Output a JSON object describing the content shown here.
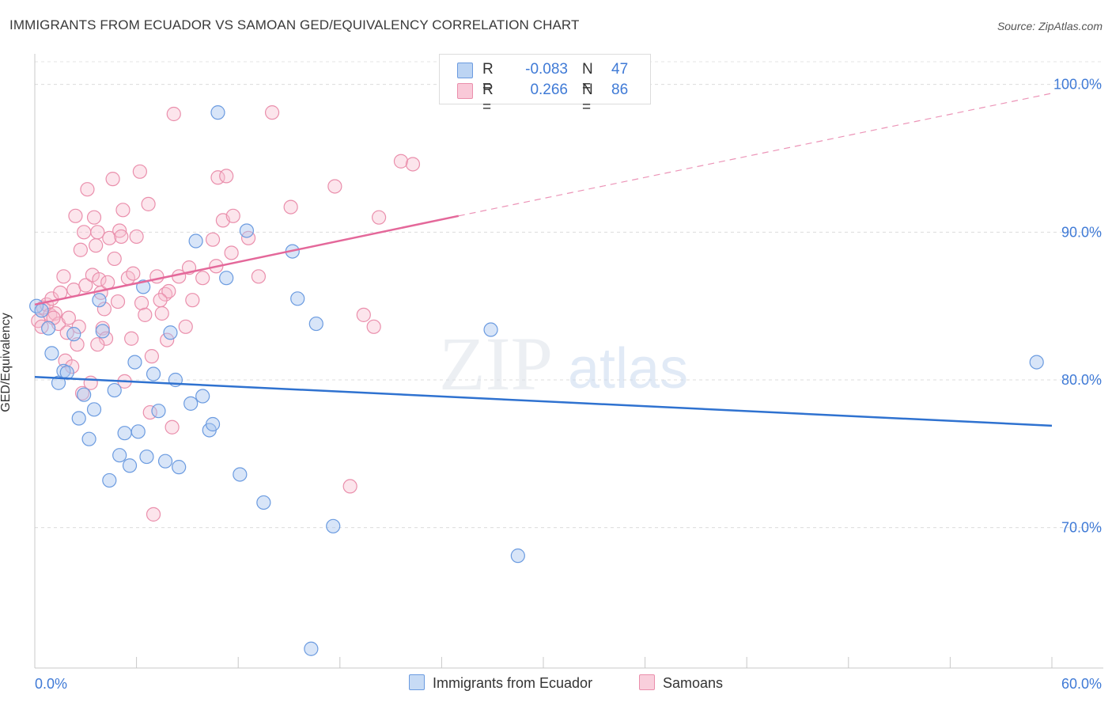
{
  "title": "IMMIGRANTS FROM ECUADOR VS SAMOAN GED/EQUIVALENCY CORRELATION CHART",
  "source": "Source: ZipAtlas.com",
  "watermark": {
    "zip": "ZIP",
    "atlas": "atlas"
  },
  "legend": {
    "rows": [
      {
        "r_label": "R =",
        "r_value": "-0.083",
        "n_label": "N =",
        "n_value": "47",
        "color": "#a8c6f0",
        "stroke": "#6b9be0"
      },
      {
        "r_label": "R =",
        "r_value": "0.266",
        "n_label": "N =",
        "n_value": "86",
        "color": "#f7bfd0",
        "stroke": "#ea8fac"
      }
    ]
  },
  "bottom_legend": {
    "items": [
      {
        "label": "Immigrants from Ecuador",
        "color": "#c7dbf5",
        "stroke": "#6b9be0"
      },
      {
        "label": "Samoans",
        "color": "#f9cfdc",
        "stroke": "#ea8fac"
      }
    ]
  },
  "chart_data": {
    "type": "scatter",
    "title": "IMMIGRANTS FROM ECUADOR VS SAMOAN GED/EQUIVALENCY CORRELATION CHART",
    "xlabel": "",
    "ylabel": "GED/Equivalency",
    "xlim": [
      0,
      60
    ],
    "ylim": [
      60.5,
      102.5
    ],
    "x_tick_labels": [
      "0.0%",
      "60.0%"
    ],
    "y_ticks": [
      70,
      80,
      90,
      100
    ],
    "y_tick_labels": [
      "70.0%",
      "80.0%",
      "90.0%",
      "100.0%"
    ],
    "grid": true,
    "legend_position": "top-center",
    "series": [
      {
        "name": "Immigrants from Ecuador",
        "color": "#6b9be0",
        "fill": "rgba(168,198,240,0.45)",
        "trend": {
          "x": [
            0,
            60
          ],
          "y": [
            80.2,
            76.9
          ],
          "color": "#2f72d0",
          "dashed_from": null
        },
        "points": [
          [
            0.1,
            85.0
          ],
          [
            0.4,
            84.7
          ],
          [
            0.8,
            83.5
          ],
          [
            1.0,
            81.8
          ],
          [
            1.4,
            79.8
          ],
          [
            1.7,
            80.6
          ],
          [
            1.9,
            80.5
          ],
          [
            2.3,
            83.1
          ],
          [
            2.6,
            77.4
          ],
          [
            2.9,
            79.0
          ],
          [
            3.2,
            76.0
          ],
          [
            3.5,
            78.0
          ],
          [
            3.8,
            85.4
          ],
          [
            4.0,
            83.3
          ],
          [
            4.4,
            73.2
          ],
          [
            4.7,
            79.3
          ],
          [
            5.0,
            74.9
          ],
          [
            5.3,
            76.4
          ],
          [
            5.6,
            74.2
          ],
          [
            5.9,
            81.2
          ],
          [
            6.1,
            76.5
          ],
          [
            6.4,
            86.3
          ],
          [
            6.6,
            74.8
          ],
          [
            7.0,
            80.4
          ],
          [
            7.3,
            77.9
          ],
          [
            7.7,
            74.5
          ],
          [
            8.0,
            83.2
          ],
          [
            8.3,
            80.0
          ],
          [
            8.5,
            74.1
          ],
          [
            9.2,
            78.4
          ],
          [
            9.5,
            89.4
          ],
          [
            9.9,
            78.9
          ],
          [
            10.3,
            76.6
          ],
          [
            10.5,
            77.0
          ],
          [
            10.8,
            98.1
          ],
          [
            11.3,
            86.9
          ],
          [
            12.1,
            73.6
          ],
          [
            12.5,
            90.1
          ],
          [
            13.5,
            71.7
          ],
          [
            15.2,
            88.7
          ],
          [
            15.5,
            85.5
          ],
          [
            16.3,
            61.8
          ],
          [
            16.6,
            83.8
          ],
          [
            17.6,
            70.1
          ],
          [
            26.9,
            83.4
          ],
          [
            28.5,
            68.1
          ],
          [
            59.1,
            81.2
          ]
        ]
      },
      {
        "name": "Samoans",
        "color": "#ea8fac",
        "fill": "rgba(247,191,208,0.40)",
        "trend": {
          "x": [
            0,
            25.0,
            60
          ],
          "y": [
            85.1,
            91.1,
            99.4
          ],
          "color": "#e4689a",
          "dashed_from": 25.0
        },
        "points": [
          [
            0.2,
            84.0
          ],
          [
            0.4,
            83.6
          ],
          [
            0.5,
            84.9
          ],
          [
            0.7,
            85.1
          ],
          [
            0.9,
            84.4
          ],
          [
            1.0,
            85.5
          ],
          [
            1.2,
            84.5
          ],
          [
            1.4,
            83.8
          ],
          [
            1.5,
            85.9
          ],
          [
            1.7,
            87.0
          ],
          [
            1.8,
            81.3
          ],
          [
            2.0,
            84.2
          ],
          [
            2.2,
            80.9
          ],
          [
            2.3,
            86.1
          ],
          [
            2.4,
            91.1
          ],
          [
            2.6,
            83.6
          ],
          [
            2.7,
            88.8
          ],
          [
            2.8,
            79.1
          ],
          [
            2.9,
            90.0
          ],
          [
            3.0,
            86.4
          ],
          [
            3.1,
            92.9
          ],
          [
            3.3,
            79.8
          ],
          [
            3.4,
            87.1
          ],
          [
            3.5,
            91.0
          ],
          [
            3.6,
            89.1
          ],
          [
            3.7,
            90.0
          ],
          [
            3.8,
            86.8
          ],
          [
            3.9,
            85.9
          ],
          [
            4.0,
            83.5
          ],
          [
            4.1,
            84.8
          ],
          [
            4.2,
            82.8
          ],
          [
            4.3,
            86.6
          ],
          [
            4.4,
            89.6
          ],
          [
            4.6,
            93.6
          ],
          [
            4.7,
            88.2
          ],
          [
            4.9,
            85.3
          ],
          [
            5.0,
            90.1
          ],
          [
            5.1,
            89.7
          ],
          [
            5.2,
            91.5
          ],
          [
            5.3,
            79.9
          ],
          [
            5.5,
            86.9
          ],
          [
            5.7,
            82.8
          ],
          [
            6.0,
            89.7
          ],
          [
            6.2,
            94.1
          ],
          [
            6.3,
            85.2
          ],
          [
            6.5,
            84.4
          ],
          [
            6.7,
            91.9
          ],
          [
            6.8,
            77.8
          ],
          [
            7.0,
            70.9
          ],
          [
            7.2,
            87.0
          ],
          [
            7.5,
            84.5
          ],
          [
            7.7,
            85.8
          ],
          [
            7.8,
            82.7
          ],
          [
            7.9,
            86.0
          ],
          [
            8.1,
            76.8
          ],
          [
            8.2,
            98.0
          ],
          [
            8.5,
            87.0
          ],
          [
            8.9,
            83.6
          ],
          [
            9.1,
            87.6
          ],
          [
            9.3,
            85.4
          ],
          [
            9.9,
            86.9
          ],
          [
            10.5,
            89.5
          ],
          [
            10.7,
            87.7
          ],
          [
            10.8,
            93.7
          ],
          [
            11.1,
            90.8
          ],
          [
            11.3,
            93.8
          ],
          [
            11.6,
            88.6
          ],
          [
            11.7,
            91.1
          ],
          [
            12.6,
            89.6
          ],
          [
            13.2,
            87.0
          ],
          [
            14.0,
            98.1
          ],
          [
            15.1,
            91.7
          ],
          [
            17.7,
            93.1
          ],
          [
            18.6,
            72.8
          ],
          [
            19.4,
            84.4
          ],
          [
            20.0,
            83.6
          ],
          [
            20.3,
            91.0
          ],
          [
            21.6,
            94.8
          ],
          [
            22.3,
            94.6
          ],
          [
            1.1,
            84.2
          ],
          [
            3.7,
            82.4
          ],
          [
            5.8,
            87.2
          ],
          [
            7.4,
            85.4
          ],
          [
            1.9,
            83.2
          ],
          [
            2.5,
            82.4
          ],
          [
            6.9,
            81.6
          ]
        ]
      }
    ]
  }
}
